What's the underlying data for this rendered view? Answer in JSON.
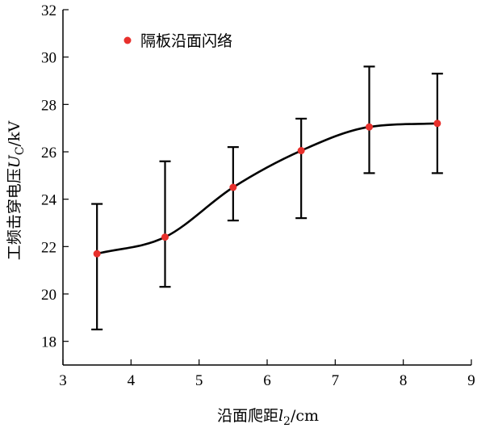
{
  "chart_data": {
    "type": "line",
    "x": [
      3.5,
      4.5,
      5.5,
      6.5,
      7.5,
      8.5
    ],
    "series": [
      {
        "name": "隔板沿面闪络",
        "color": "#e8302c",
        "values": [
          21.7,
          22.4,
          24.5,
          26.05,
          27.05,
          27.2
        ],
        "err_low": [
          18.5,
          20.3,
          23.1,
          23.2,
          25.1,
          25.1
        ],
        "err_high": [
          23.8,
          25.6,
          26.2,
          27.4,
          29.6,
          29.3
        ]
      }
    ],
    "xlabel": {
      "main": "沿面爬距",
      "var": "l",
      "sub": "2",
      "unit": "/cm"
    },
    "ylabel": {
      "main": "工频击穿电压",
      "var": "U",
      "sub": "C",
      "unit": "/kV"
    },
    "xlim": [
      3,
      9
    ],
    "ylim": [
      17,
      32
    ],
    "xticks": [
      3,
      4,
      5,
      6,
      7,
      8,
      9
    ],
    "yticks": [
      18,
      20,
      22,
      24,
      26,
      28,
      30,
      32
    ],
    "grid": false,
    "legend_position": "top-left"
  }
}
